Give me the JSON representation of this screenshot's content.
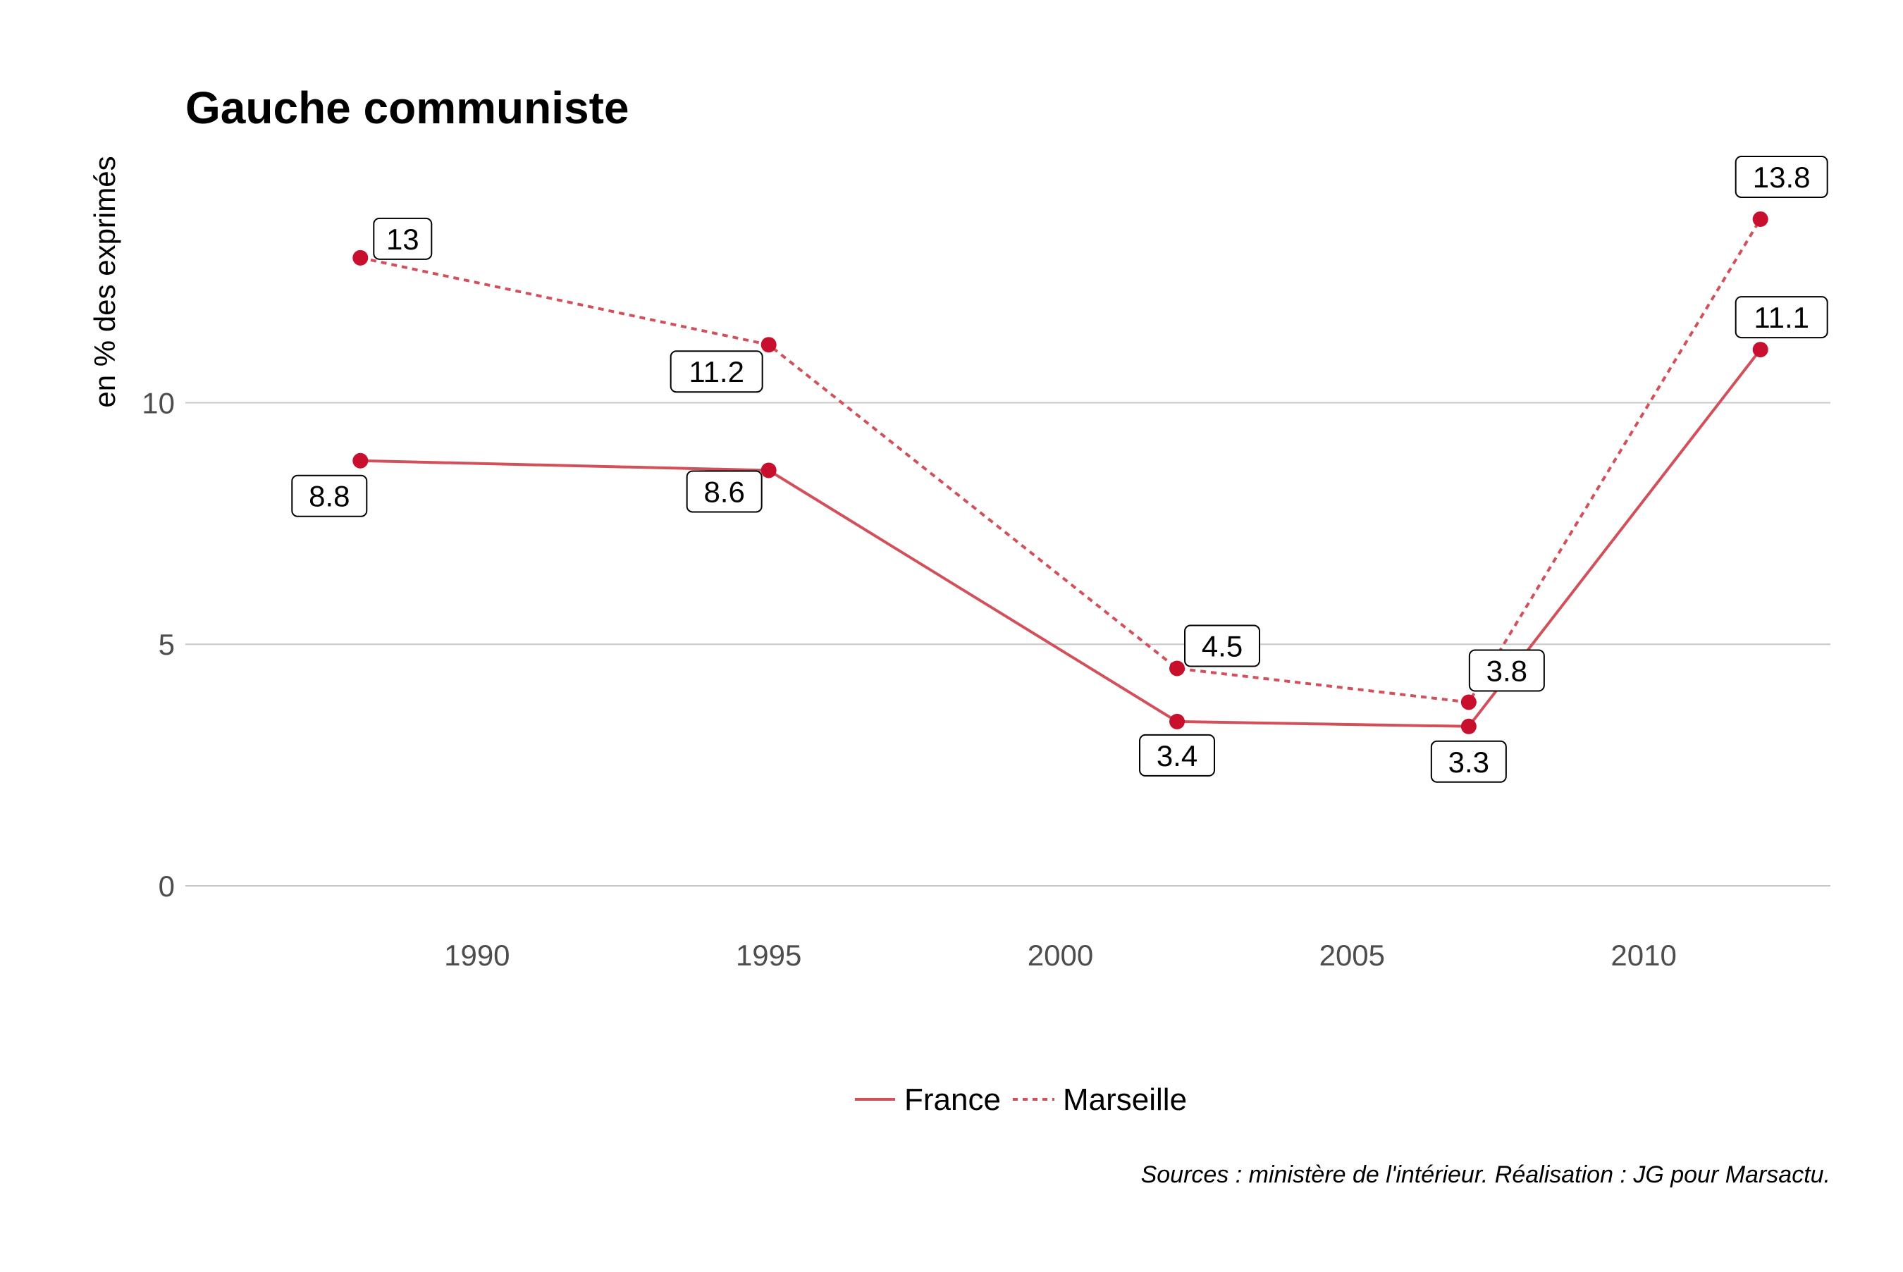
{
  "chart_data": {
    "type": "line",
    "title": "Gauche communiste",
    "xlabel": "",
    "ylabel": "en % des exprimés",
    "x": [
      1988,
      1995,
      2002,
      2007,
      2012
    ],
    "xticks": [
      1990,
      1995,
      2000,
      2005,
      2010
    ],
    "yticks": [
      0,
      5,
      10
    ],
    "xlim": [
      1985,
      2013.2
    ],
    "ylim": [
      -0.7,
      15.2
    ],
    "grid": "horizontal major",
    "legend": "bottom",
    "series": [
      {
        "name": "France",
        "values": [
          8.8,
          8.6,
          3.4,
          3.3,
          11.1
        ],
        "labels": [
          "8.8",
          "8.6",
          "3.4",
          "3.3",
          "11.1"
        ],
        "dash": "solid"
      },
      {
        "name": "Marseille",
        "values": [
          13,
          11.2,
          4.5,
          3.8,
          13.8
        ],
        "labels": [
          "13",
          "11.2",
          "4.5",
          "3.8",
          "13.8"
        ],
        "dash": "dotted"
      }
    ],
    "colors": {
      "line": "#d2505a",
      "point": "#c8102e"
    },
    "caption": "Sources : ministère de l'intérieur. Réalisation : JG pour Marsactu."
  }
}
